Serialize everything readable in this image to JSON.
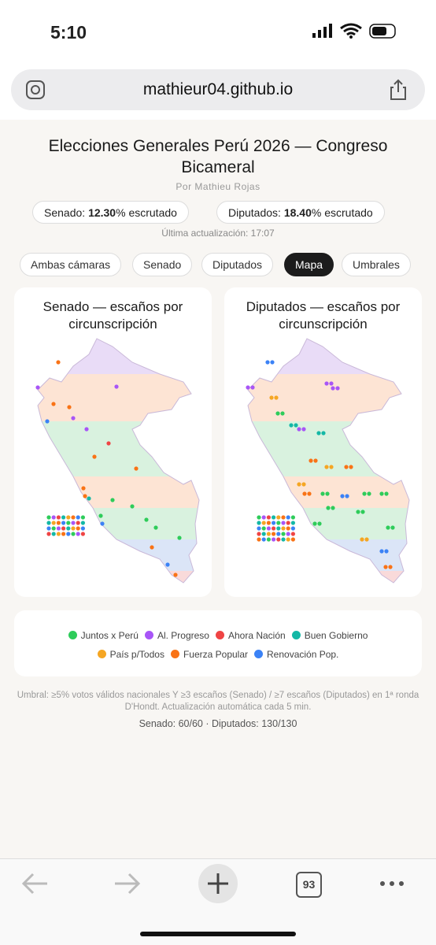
{
  "status_bar": {
    "time": "5:10"
  },
  "browser": {
    "url": "mathieur04.github.io",
    "tab_count": "93"
  },
  "header": {
    "title": "Elecciones Generales Perú 2026 — Congreso Bicameral",
    "byline": "Por Mathieu Rojas"
  },
  "progress": [
    {
      "label": "Senado:",
      "value": "12.30",
      "suffix": "% escrutado"
    },
    {
      "label": "Diputados:",
      "value": "18.40",
      "suffix": "% escrutado"
    }
  ],
  "updated": "Última actualización: 17:07",
  "tabs": [
    {
      "label": "Ambas cámaras",
      "active": false
    },
    {
      "label": "Senado",
      "active": false
    },
    {
      "label": "Diputados",
      "active": false
    },
    {
      "label": "Mapa",
      "active": true
    },
    {
      "label": "Umbrales",
      "active": false
    }
  ],
  "maps": [
    {
      "title": "Senado — escaños por circunscripción"
    },
    {
      "title": "Diputados — escaños por circunscripción"
    }
  ],
  "legend": [
    {
      "label": "Juntos x Perú",
      "color": "#2ecc5a"
    },
    {
      "label": "Al. Progreso",
      "color": "#a855f7"
    },
    {
      "label": "Ahora Nación",
      "color": "#ef4444"
    },
    {
      "label": "Buen Gobierno",
      "color": "#14b8a6"
    },
    {
      "label": "País p/Todos",
      "color": "#f5a623"
    },
    {
      "label": "Fuerza Popular",
      "color": "#f97316"
    },
    {
      "label": "Renovación Pop.",
      "color": "#3b82f6"
    }
  ],
  "footer": {
    "note": "Umbral: ≥5% votos válidos nacionales Y ≥3 escaños (Senado) / ≥7 escaños (Diputados) en 1ª ronda D'Hondt. Actualización automática cada 5 min.",
    "totals": "Senado: 60/60 · Diputados: 130/130"
  }
}
